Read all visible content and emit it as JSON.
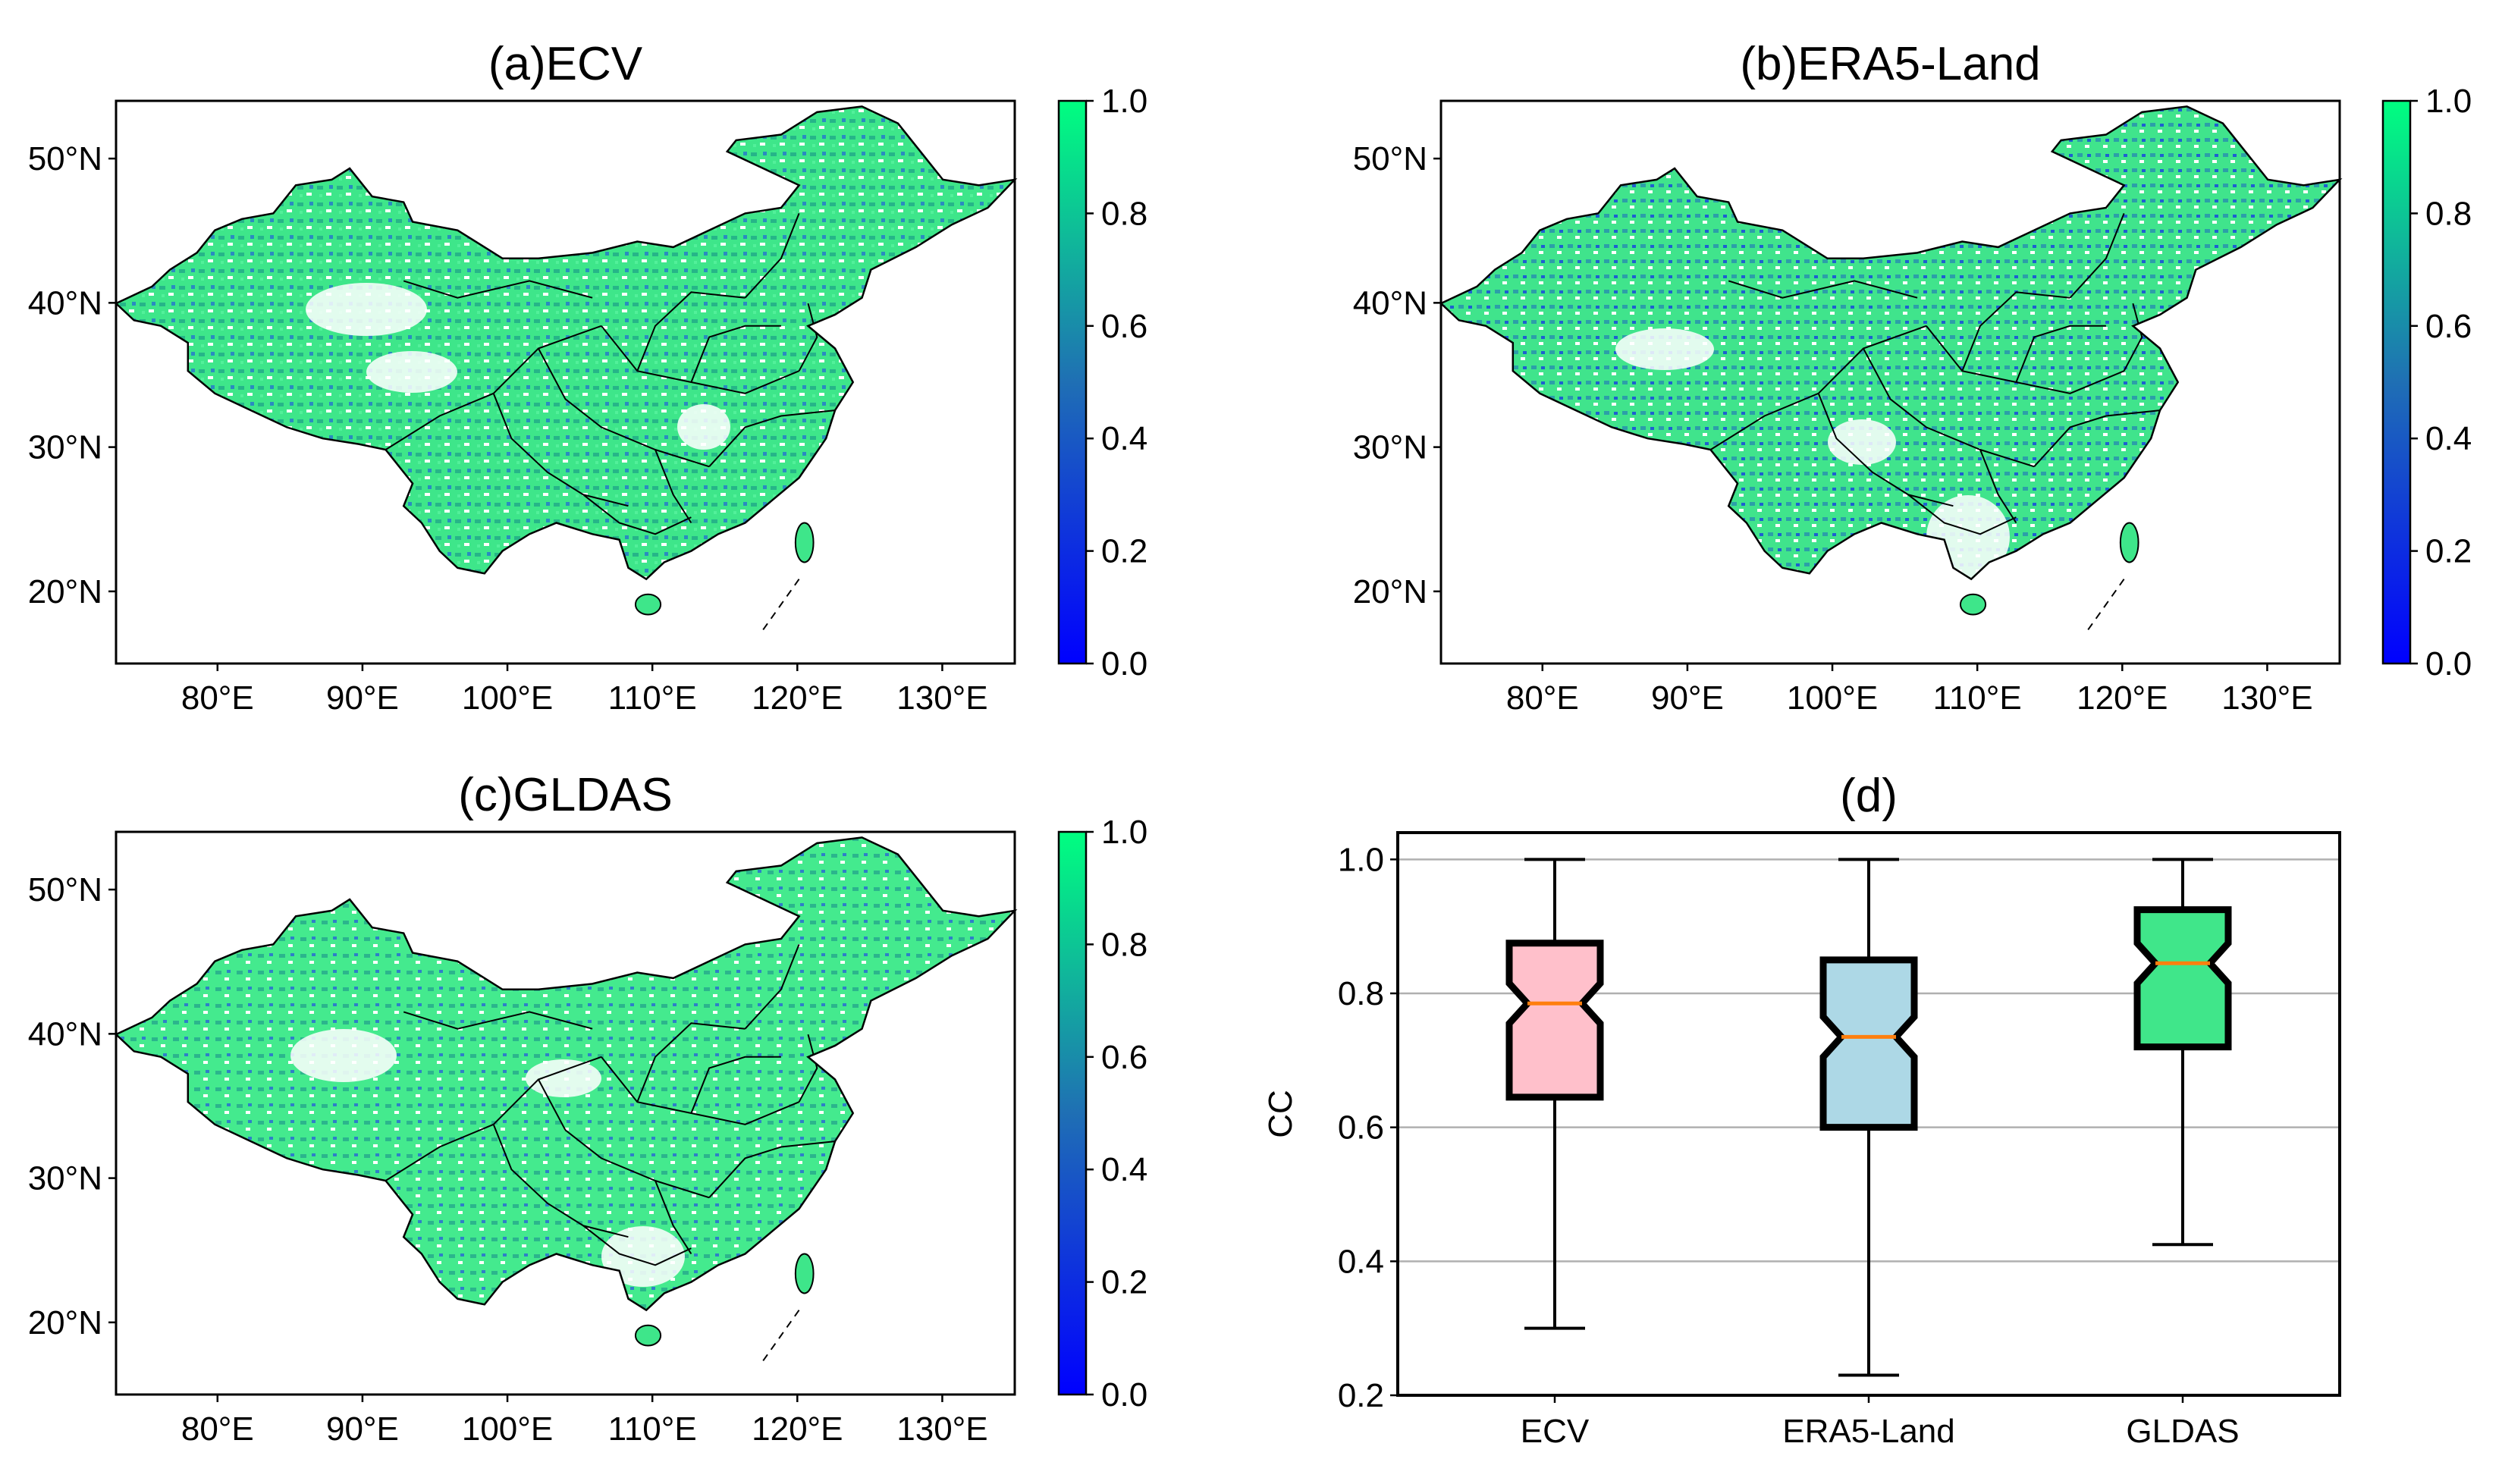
{
  "colors": {
    "cmap_low": "#0000ff",
    "cmap_mid": "#1f6fb4",
    "cmap_high": "#00ff80",
    "map_fill": "#3ee68a",
    "box_ecv": "#ffc0cb",
    "box_era5": "#add8e6",
    "box_gldas": "#40e68a",
    "median": "#ff7f0e",
    "grid": "#b0b0b0"
  },
  "map_axes": {
    "lon_ticks": [
      "80°E",
      "90°E",
      "100°E",
      "110°E",
      "120°E",
      "130°E"
    ],
    "lat_ticks": [
      "50°N",
      "40°N",
      "30°N",
      "20°N"
    ],
    "colorbar_ticks": [
      "1.0",
      "0.8",
      "0.6",
      "0.4",
      "0.2",
      "0.0"
    ]
  },
  "chart_data": [
    {
      "type": "heatmap",
      "title": "(a)ECV",
      "xlabel": "",
      "ylabel": "",
      "xlim": [
        73,
        135
      ],
      "ylim": [
        15,
        54
      ],
      "colorbar_range": [
        0.0,
        1.0
      ]
    },
    {
      "type": "heatmap",
      "title": "(b)ERA5-Land",
      "xlabel": "",
      "ylabel": "",
      "xlim": [
        73,
        135
      ],
      "ylim": [
        15,
        54
      ],
      "colorbar_range": [
        0.0,
        1.0
      ]
    },
    {
      "type": "heatmap",
      "title": "(c)GLDAS",
      "xlabel": "",
      "ylabel": "",
      "xlim": [
        73,
        135
      ],
      "ylim": [
        15,
        54
      ],
      "colorbar_range": [
        0.0,
        1.0
      ]
    },
    {
      "type": "box",
      "title": "(d)",
      "xlabel": "",
      "ylabel": "CC",
      "ylim": [
        0.2,
        1.04
      ],
      "yticks": [
        "0.2",
        "0.4",
        "0.6",
        "0.8",
        "1.0"
      ],
      "grid": "horizontal",
      "categories": [
        "ECV",
        "ERA5-Land",
        "GLDAS"
      ],
      "boxes": [
        {
          "name": "ECV",
          "whisker_low": 0.3,
          "q1": 0.645,
          "median": 0.785,
          "q3": 0.875,
          "whisker_high": 1.0
        },
        {
          "name": "ERA5-Land",
          "whisker_low": 0.23,
          "q1": 0.6,
          "median": 0.735,
          "q3": 0.85,
          "whisker_high": 1.0
        },
        {
          "name": "GLDAS",
          "whisker_low": 0.425,
          "q1": 0.72,
          "median": 0.845,
          "q3": 0.925,
          "whisker_high": 1.0
        }
      ]
    }
  ]
}
